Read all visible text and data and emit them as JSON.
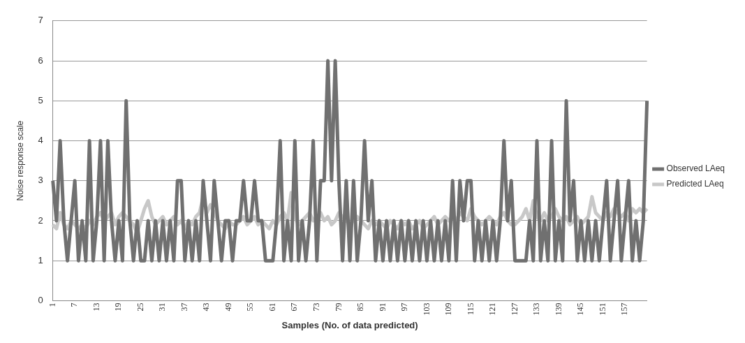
{
  "chart_data": {
    "type": "line",
    "xlabel": "Samples (No. of data predicted)",
    "ylabel": "Noise response scale",
    "categories": [
      "1",
      null,
      null,
      null,
      null,
      null,
      "7",
      null,
      null,
      null,
      null,
      null,
      "13",
      null,
      null,
      null,
      null,
      null,
      "19",
      null,
      null,
      null,
      null,
      null,
      "25",
      null,
      null,
      null,
      null,
      null,
      "31",
      null,
      null,
      null,
      null,
      null,
      "37",
      null,
      null,
      null,
      null,
      null,
      "43",
      null,
      null,
      null,
      null,
      null,
      "49",
      null,
      null,
      null,
      null,
      null,
      "55",
      null,
      null,
      null,
      null,
      null,
      "61",
      null,
      null,
      null,
      null,
      null,
      "67",
      null,
      null,
      null,
      null,
      null,
      "73",
      null,
      null,
      null,
      null,
      null,
      "79",
      null,
      null,
      null,
      null,
      null,
      "85",
      null,
      null,
      null,
      null,
      null,
      "91",
      null,
      null,
      null,
      null,
      null,
      "97",
      null,
      null,
      null,
      null,
      null,
      "103",
      null,
      null,
      null,
      null,
      null,
      "109",
      null,
      null,
      null,
      null,
      null,
      "115",
      null,
      null,
      null,
      null,
      null,
      "121",
      null,
      null,
      null,
      null,
      null,
      "127",
      null,
      null,
      null,
      null,
      null,
      "133",
      null,
      null,
      null,
      null,
      null,
      "139",
      null,
      null,
      null,
      null,
      null,
      "145",
      null,
      null,
      null,
      null,
      null,
      "151",
      null,
      null,
      null,
      null,
      null,
      "157",
      null,
      null,
      null,
      null,
      null,
      null
    ],
    "series": [
      {
        "name": "Observed LAeq",
        "color": "#707070",
        "values": [
          3,
          2,
          4,
          2,
          1,
          2,
          3,
          1,
          2,
          1,
          4,
          1,
          2,
          4,
          1,
          4,
          2,
          1,
          2,
          1,
          5,
          2,
          1,
          2,
          1,
          1,
          2,
          1,
          2,
          1,
          2,
          1,
          2,
          1,
          3,
          3,
          1,
          2,
          1,
          2,
          1,
          3,
          2,
          1,
          3,
          2,
          1,
          2,
          2,
          1,
          2,
          2,
          3,
          2,
          2,
          3,
          2,
          2,
          1,
          1,
          1,
          2,
          4,
          1,
          2,
          1,
          4,
          1,
          2,
          1,
          2,
          4,
          1,
          3,
          3,
          6,
          3,
          6,
          3,
          1,
          3,
          1,
          3,
          1,
          2,
          4,
          2,
          3,
          1,
          2,
          1,
          2,
          1,
          2,
          1,
          2,
          1,
          2,
          1,
          2,
          1,
          2,
          1,
          2,
          1,
          2,
          1,
          2,
          1,
          3,
          1,
          3,
          2,
          3,
          3,
          1,
          2,
          1,
          2,
          1,
          2,
          1,
          2,
          4,
          2,
          3,
          1,
          1,
          1,
          1,
          2,
          1,
          4,
          1,
          2,
          1,
          4,
          1,
          2,
          1,
          5,
          2,
          3,
          1,
          2,
          1,
          2,
          1,
          2,
          1,
          2,
          3,
          1,
          2,
          3,
          1,
          2,
          3,
          1,
          2,
          1,
          2,
          5
        ]
      },
      {
        "name": "Predicted LAeq",
        "color": "#c8c8c8",
        "values": [
          1.9,
          1.8,
          2.2,
          1.9,
          1.8,
          2.0,
          1.9,
          1.8,
          1.9,
          1.8,
          2.0,
          1.9,
          2.1,
          2.2,
          2.0,
          2.1,
          2.2,
          1.9,
          2.1,
          2.2,
          2.1,
          2.0,
          1.9,
          1.7,
          2.0,
          2.3,
          2.5,
          2.1,
          1.9,
          2.0,
          2.1,
          1.9,
          2.0,
          2.1,
          1.9,
          2.0,
          1.8,
          2.0,
          1.9,
          2.1,
          2.2,
          2.6,
          2.2,
          2.4,
          2.2,
          2.0,
          1.9,
          1.8,
          2.0,
          1.9,
          1.9,
          2.0,
          2.1,
          1.9,
          2.0,
          2.1,
          1.9,
          2.0,
          1.9,
          1.8,
          2.0,
          1.9,
          2.1,
          2.2,
          2.0,
          2.7,
          2.1,
          1.9,
          2.0,
          2.1,
          2.2,
          2.0,
          2.1,
          2.2,
          2.0,
          2.1,
          1.9,
          2.0,
          2.2,
          2.1,
          2.0,
          1.9,
          2.0,
          2.1,
          2.0,
          1.9,
          1.8,
          2.0,
          1.9,
          2.0,
          1.9,
          1.8,
          2.0,
          1.9,
          1.8,
          2.0,
          1.9,
          2.0,
          1.8,
          1.9,
          2.0,
          1.8,
          1.9,
          2.0,
          2.1,
          1.9,
          2.0,
          2.1,
          2.0,
          2.1,
          2.0,
          2.2,
          2.1,
          2.0,
          2.3,
          2.1,
          2.0,
          1.9,
          2.0,
          2.1,
          2.0,
          1.9,
          2.1,
          2.2,
          2.0,
          1.9,
          1.9,
          2.0,
          2.1,
          2.3,
          2.0,
          2.5,
          2.1,
          2.0,
          2.2,
          2.0,
          2.1,
          2.3,
          2.1,
          2.0,
          2.1,
          1.9,
          2.0,
          2.1,
          1.9,
          2.0,
          2.1,
          2.6,
          2.2,
          2.1,
          2.0,
          2.2,
          2.1,
          2.3,
          2.2,
          2.1,
          2.2,
          2.0,
          2.3,
          2.2,
          2.3,
          2.2,
          2.3
        ]
      }
    ],
    "ylim": [
      0,
      7
    ],
    "yticks": [
      0,
      1,
      2,
      3,
      4,
      5,
      6,
      7
    ],
    "grid": "y",
    "legend": "right",
    "marker": "none",
    "line_style": "solid"
  }
}
